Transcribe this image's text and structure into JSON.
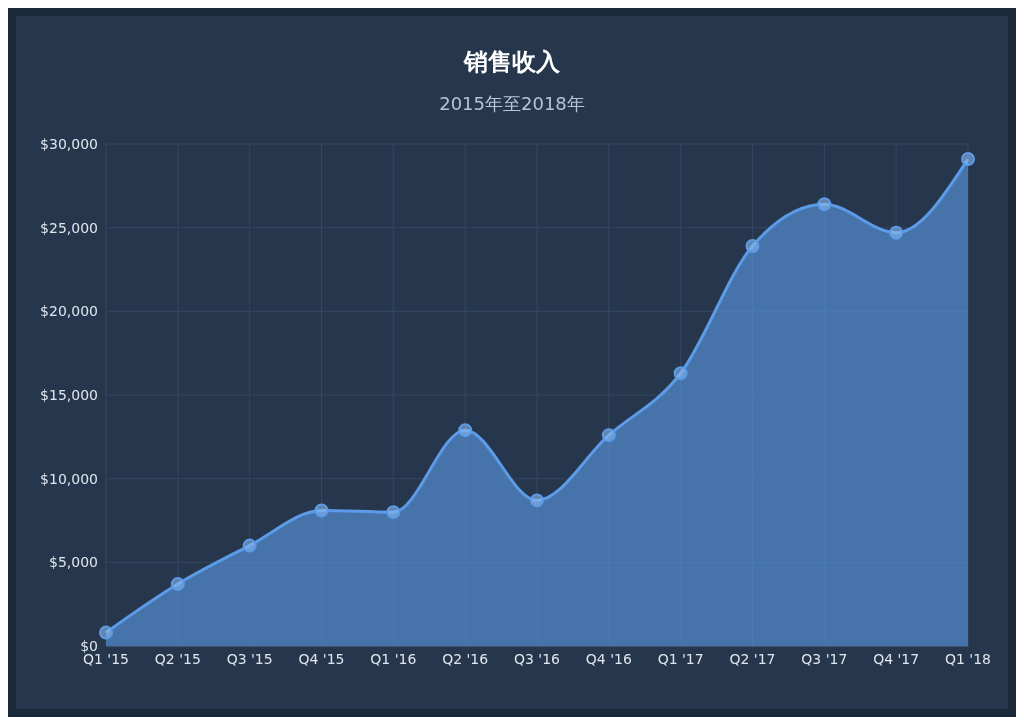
{
  "chart_data": {
    "type": "area",
    "title": "销售收入",
    "subtitle": "2015年至2018年",
    "categories": [
      "Q1 '15",
      "Q2 '15",
      "Q3 '15",
      "Q4 '15",
      "Q1 '16",
      "Q2 '16",
      "Q3 '16",
      "Q4 '16",
      "Q1 '17",
      "Q2 '17",
      "Q3 '17",
      "Q4 '17",
      "Q1 '18"
    ],
    "series": [
      {
        "color": "#5b9be8",
        "values": [
          800,
          3700,
          6000,
          8100,
          8000,
          12900,
          8700,
          12600,
          16300,
          23900,
          26400,
          24700,
          29100
        ]
      }
    ],
    "ylim": [
      0,
      30000
    ],
    "yticks": [
      {
        "value": 0,
        "label": "$0"
      },
      {
        "value": 5000,
        "label": "$5,000"
      },
      {
        "value": 10000,
        "label": "$10,000"
      },
      {
        "value": 15000,
        "label": "$15,000"
      },
      {
        "value": 20000,
        "label": "$20,000"
      },
      {
        "value": 25000,
        "label": "$25,000"
      },
      {
        "value": 30000,
        "label": "$30,000"
      }
    ],
    "grid": true,
    "marker": "circle"
  }
}
